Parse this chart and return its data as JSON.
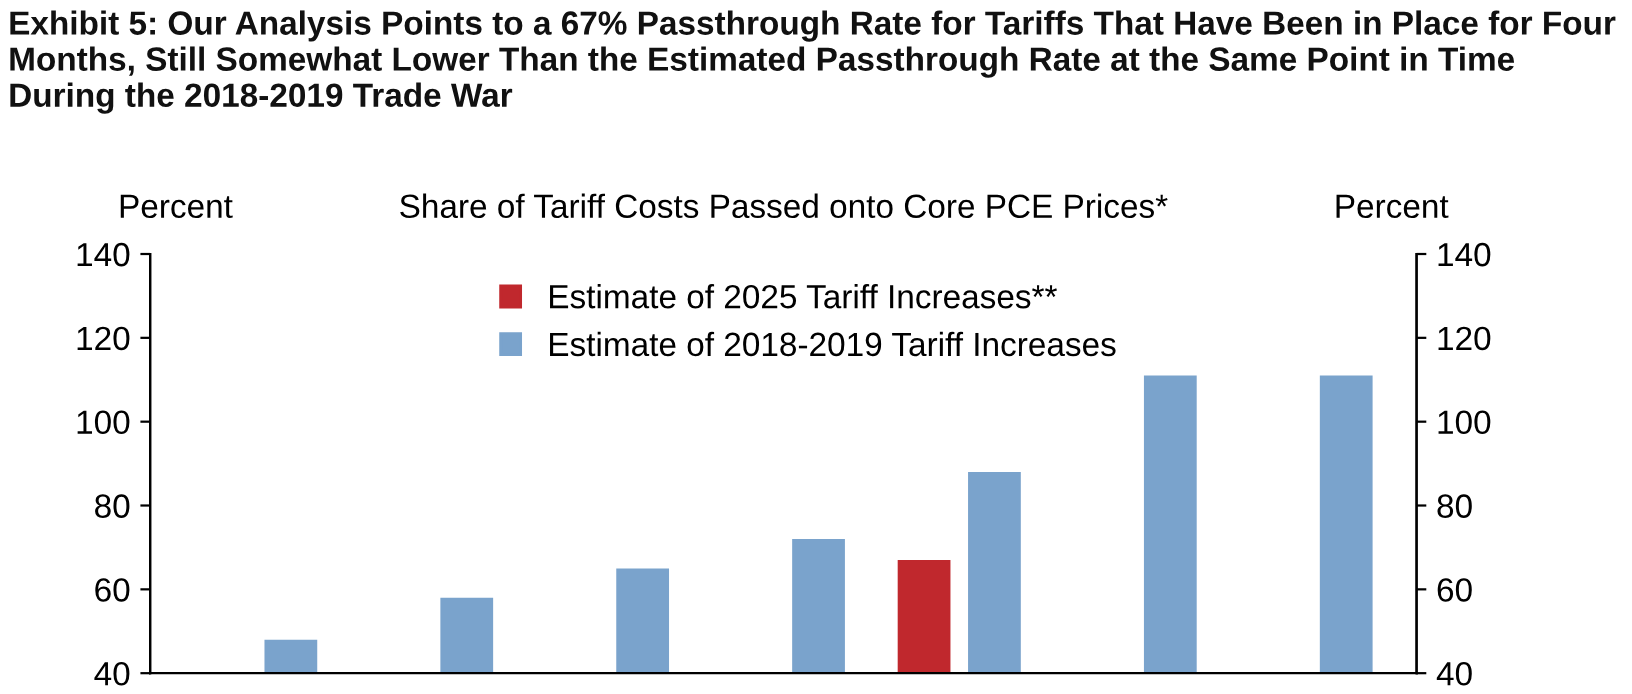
{
  "chart_data": {
    "type": "bar",
    "title": "Exhibit 5: Our Analysis Points to a 67% Passthrough Rate for Tariffs That Have Been in Place for Four Months, Still Somewhat Lower Than the Estimated Passthrough Rate at the Same Point in Time During the 2018-2019 Trade War",
    "subtitle": "Share of Tariff Costs Passed onto Core PCE Prices*",
    "ylabel": "Percent",
    "y2label": "Percent",
    "categories": [
      null,
      null,
      null,
      null,
      null,
      null,
      null
    ],
    "series": [
      {
        "name": "Estimate of 2025 Tariff Increases**",
        "color": "#c0282d",
        "values": [
          null,
          null,
          null,
          null,
          67,
          null,
          null
        ]
      },
      {
        "name": "Estimate of 2018-2019 Tariff Increases",
        "color": "#7aa3cc",
        "values": [
          48,
          58,
          65,
          72,
          88,
          111,
          111
        ]
      }
    ],
    "ylim": [
      40,
      140
    ],
    "yticks": [
      40,
      60,
      80,
      100,
      120,
      140
    ],
    "y2lim": [
      40,
      140
    ],
    "y2ticks": [
      40,
      60,
      80,
      100,
      120,
      140
    ],
    "legend": "top",
    "grid": false,
    "tick_labels": "y"
  }
}
